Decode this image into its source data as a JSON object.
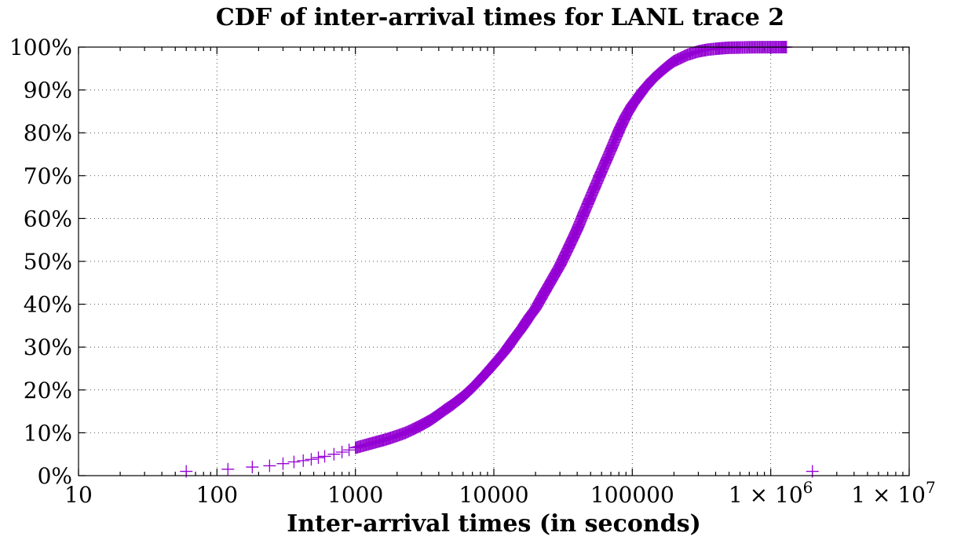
{
  "chart_data": {
    "type": "scatter",
    "title": "CDF of inter-arrival times for LANL trace 2",
    "xlabel": "Inter-arrival times (in seconds)",
    "ylabel": "",
    "xscale": "log",
    "xlim": [
      10,
      10000000
    ],
    "ylim": [
      0,
      100
    ],
    "grid": true,
    "marker": "+",
    "color": "#9400d3",
    "x_ticks": [
      {
        "value": 10,
        "label": "10"
      },
      {
        "value": 100,
        "label": "100"
      },
      {
        "value": 1000,
        "label": "1000"
      },
      {
        "value": 10000,
        "label": "10000"
      },
      {
        "value": 100000,
        "label": "100000"
      },
      {
        "value": 1000000,
        "label_base": "1 × 10",
        "label_exp": "6"
      },
      {
        "value": 10000000,
        "label_base": "1 × 10",
        "label_exp": "7"
      }
    ],
    "y_ticks": [
      {
        "value": 0,
        "label": "0%"
      },
      {
        "value": 10,
        "label": "10%"
      },
      {
        "value": 20,
        "label": "20%"
      },
      {
        "value": 30,
        "label": "30%"
      },
      {
        "value": 40,
        "label": "40%"
      },
      {
        "value": 50,
        "label": "50%"
      },
      {
        "value": 60,
        "label": "60%"
      },
      {
        "value": 70,
        "label": "70%"
      },
      {
        "value": 80,
        "label": "80%"
      },
      {
        "value": 90,
        "label": "90%"
      },
      {
        "value": 100,
        "label": "100%"
      }
    ],
    "series": [
      {
        "points": [
          [
            60,
            1
          ],
          [
            120,
            1.5
          ],
          [
            180,
            2
          ],
          [
            240,
            2.3
          ],
          [
            300,
            2.8
          ],
          [
            360,
            3.2
          ],
          [
            420,
            3.5
          ],
          [
            480,
            3.8
          ],
          [
            540,
            4.2
          ],
          [
            600,
            4.5
          ],
          [
            700,
            5
          ],
          [
            800,
            5.5
          ],
          [
            900,
            6
          ],
          [
            1000,
            6.5
          ],
          [
            1200,
            7.2
          ],
          [
            1400,
            7.8
          ],
          [
            1600,
            8.3
          ],
          [
            1800,
            8.8
          ],
          [
            2000,
            9.3
          ],
          [
            2300,
            10
          ],
          [
            2600,
            10.8
          ],
          [
            3000,
            11.8
          ],
          [
            3500,
            13
          ],
          [
            4000,
            14.3
          ],
          [
            4500,
            15.5
          ],
          [
            5000,
            16.5
          ],
          [
            6000,
            18.5
          ],
          [
            7000,
            20.5
          ],
          [
            8000,
            22.5
          ],
          [
            9000,
            24.3
          ],
          [
            10000,
            26
          ],
          [
            12000,
            29
          ],
          [
            14000,
            32
          ],
          [
            16000,
            34.5
          ],
          [
            18000,
            37
          ],
          [
            20000,
            39
          ],
          [
            23000,
            42.5
          ],
          [
            26000,
            45.5
          ],
          [
            30000,
            49
          ],
          [
            35000,
            53.5
          ],
          [
            40000,
            57.5
          ],
          [
            45000,
            61.5
          ],
          [
            50000,
            65
          ],
          [
            60000,
            71
          ],
          [
            70000,
            76
          ],
          [
            80000,
            80.5
          ],
          [
            90000,
            84
          ],
          [
            100000,
            86.5
          ],
          [
            120000,
            90
          ],
          [
            140000,
            92.5
          ],
          [
            160000,
            94.2
          ],
          [
            180000,
            95.6
          ],
          [
            200000,
            96.7
          ],
          [
            250000,
            98.2
          ],
          [
            300000,
            99
          ],
          [
            350000,
            99.4
          ],
          [
            400000,
            99.6
          ],
          [
            450000,
            99.75
          ],
          [
            500000,
            99.85
          ],
          [
            600000,
            99.9
          ],
          [
            700000,
            99.95
          ],
          [
            800000,
            99.97
          ],
          [
            1000000,
            99.98
          ],
          [
            1200000,
            99.99
          ],
          [
            1300000,
            100
          ],
          [
            2000000,
            1
          ]
        ]
      }
    ]
  }
}
